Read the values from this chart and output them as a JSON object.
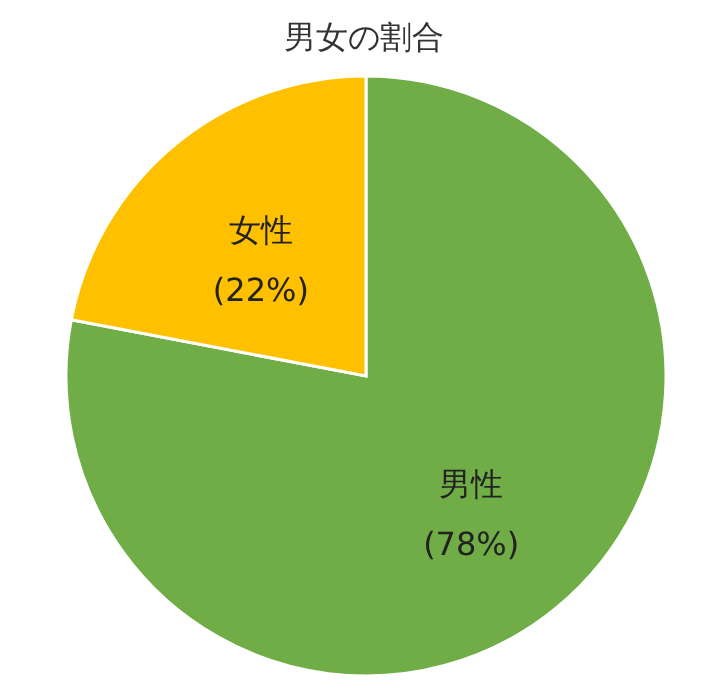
{
  "chart_data": {
    "type": "pie",
    "title": "男女の割合",
    "categories": [
      "男性",
      "女性"
    ],
    "values": [
      78,
      22
    ],
    "colors": [
      "#70ad47",
      "#ffc000"
    ],
    "value_labels": [
      "(78%)",
      "(22%)"
    ]
  }
}
